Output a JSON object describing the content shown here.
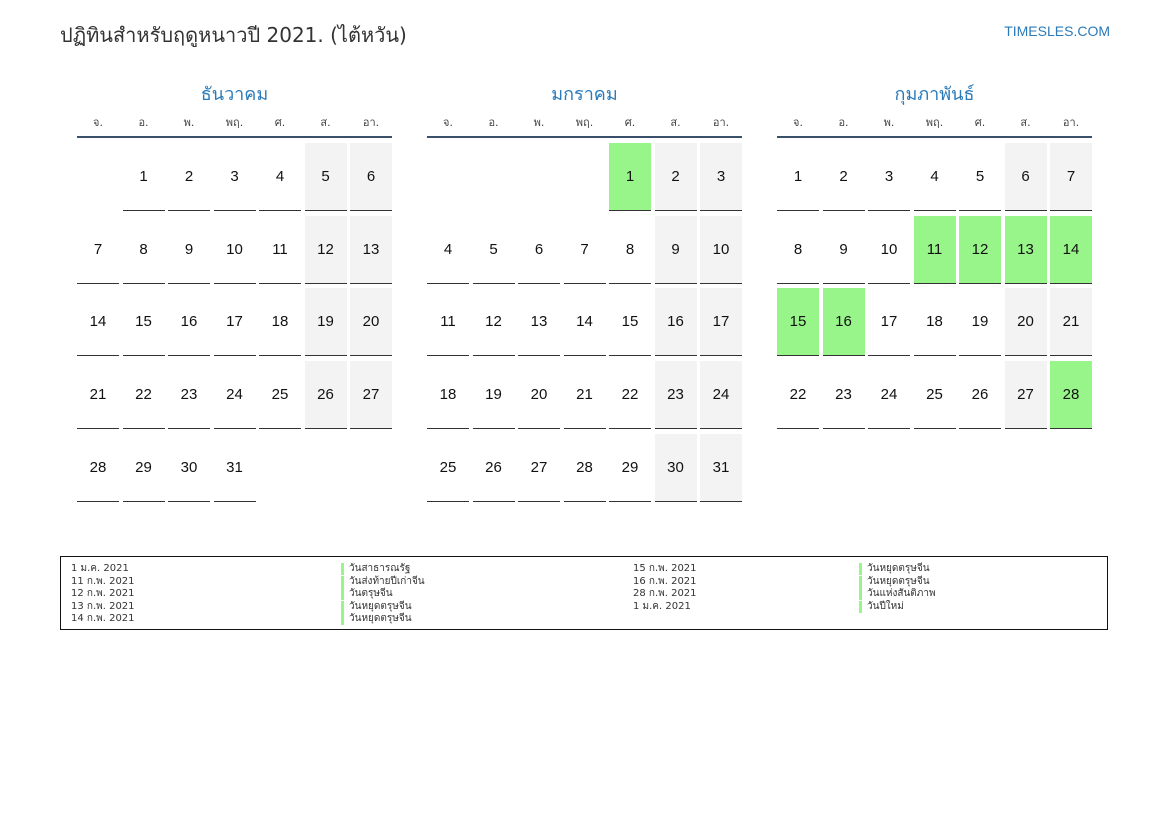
{
  "title": "ปฏิทินสำหรับฤดูหนาวปี 2021. (ไต้หวัน)",
  "site": "TIMESLES.COM",
  "weekday_labels": [
    "จ.",
    "อ.",
    "พ.",
    "พฤ.",
    "ศ.",
    "ส.",
    "อา."
  ],
  "colors": {
    "accent": "#2a7ab9",
    "holiday": "#98f58a",
    "weekend": "#f3f3f3"
  },
  "months": [
    {
      "name": "ธันวาคม",
      "start_offset": 1,
      "days": 31,
      "holidays": []
    },
    {
      "name": "มกราคม",
      "start_offset": 4,
      "days": 31,
      "holidays": [
        1
      ]
    },
    {
      "name": "กุมภาพันธ์",
      "start_offset": 0,
      "days": 28,
      "holidays": [
        11,
        12,
        13,
        14,
        15,
        16,
        28
      ]
    }
  ],
  "legend": [
    {
      "date": "1 ม.ค. 2021",
      "name": "วันสาธารณรัฐ"
    },
    {
      "date": "11 ก.พ. 2021",
      "name": "วันส่งท้ายปีเก่าจีน"
    },
    {
      "date": "12 ก.พ. 2021",
      "name": "วันตรุษจีน"
    },
    {
      "date": "13 ก.พ. 2021",
      "name": "วันหยุดตรุษจีน"
    },
    {
      "date": "14 ก.พ. 2021",
      "name": "วันหยุดตรุษจีน"
    },
    {
      "date": "15 ก.พ. 2021",
      "name": "วันหยุดตรุษจีน"
    },
    {
      "date": "16 ก.พ. 2021",
      "name": "วันหยุดตรุษจีน"
    },
    {
      "date": "28 ก.พ. 2021",
      "name": "วันแห่งสันติภาพ"
    },
    {
      "date": "1 ม.ค. 2021",
      "name": "วันปีใหม่"
    }
  ]
}
